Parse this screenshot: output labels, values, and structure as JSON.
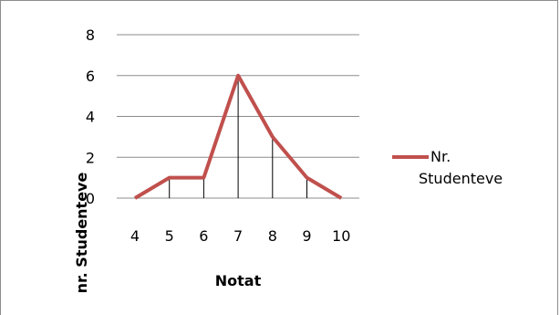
{
  "chart_data": {
    "type": "line",
    "categories": [
      "4",
      "5",
      "6",
      "7",
      "8",
      "9",
      "10"
    ],
    "series": [
      {
        "name": "Nr. Studenteve",
        "values": [
          0,
          1,
          1,
          6,
          3,
          1,
          0
        ],
        "color": "#c0504d"
      }
    ],
    "xlabel": "Notat",
    "ylabel": "nr. Studenteve",
    "ylim": [
      0,
      8
    ],
    "yticks": [
      "0",
      "2",
      "4",
      "6",
      "8"
    ],
    "grid": true,
    "drop_lines": true,
    "legend": {
      "position": "right",
      "lines": [
        "Nr.",
        "Studenteve"
      ]
    }
  }
}
